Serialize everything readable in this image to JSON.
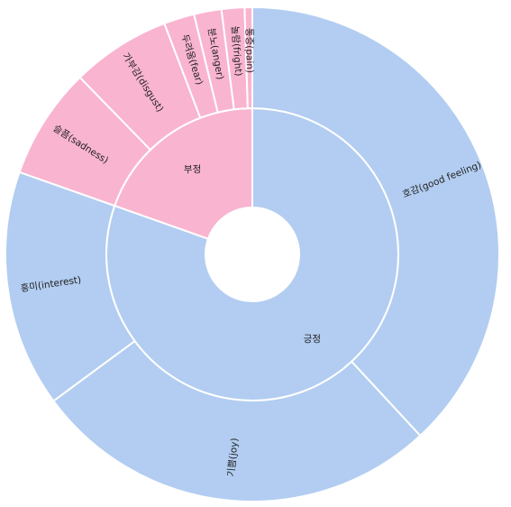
{
  "chart_data": {
    "type": "sunburst",
    "nodes": [
      {
        "name": "긍정",
        "value": 80.4,
        "color": "#b2cdf1",
        "children": [
          {
            "name": "호감(good feeling)",
            "value": 38.1
          },
          {
            "name": "기쁨(joy)",
            "value": 26.8
          },
          {
            "name": "흥미(interest)",
            "value": 15.5
          }
        ]
      },
      {
        "name": "부정",
        "value": 19.6,
        "color": "#f9b4d0",
        "children": [
          {
            "name": "슬픔(sadness)",
            "value": 7.3
          },
          {
            "name": "가부감(disgust)",
            "value": 6.5
          },
          {
            "name": "두려움(fear)",
            "value": 2.0
          },
          {
            "name": "분노(anger)",
            "value": 1.8
          },
          {
            "name": "놀람(fright)",
            "value": 1.5
          },
          {
            "name": "통증(pain)",
            "value": 0.5
          }
        ]
      }
    ]
  }
}
